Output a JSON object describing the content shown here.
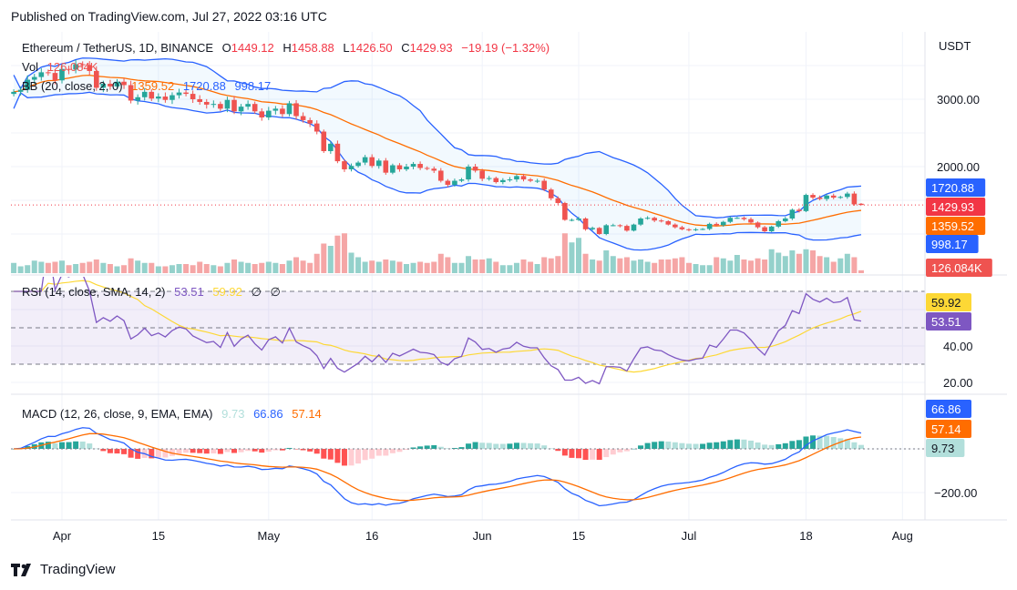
{
  "published": "Published on TradingView.com, Jul 27, 2022 03:16 UTC",
  "footer_brand": "TradingView",
  "header": {
    "symbol": "Ethereum / TetherUS, 1D, BINANCE",
    "o_label": "O",
    "o": "1449.12",
    "h_label": "H",
    "h": "1458.88",
    "l_label": "L",
    "l": "1426.50",
    "c_label": "C",
    "c": "1429.93",
    "change": "−19.19 (−1.32%)"
  },
  "vol_legend": {
    "label": "Vol",
    "value": "126.084K"
  },
  "bb_legend": {
    "label": "BB (20, close, 2, 0)",
    "basis": "1359.52",
    "upper": "1720.88",
    "lower": "998.17"
  },
  "rsi_legend": {
    "label": "RSI (14, close, SMA, 14, 2)",
    "rsi": "53.51",
    "ma": "59.92",
    "extra1": "∅",
    "extra2": "∅"
  },
  "macd_legend": {
    "label": "MACD (12, 26, close, 9, EMA, EMA)",
    "hist": "9.73",
    "macd": "66.86",
    "signal": "57.14"
  },
  "axis": {
    "currency": "USDT",
    "price_ticks": [
      "3000.00",
      "2000.00"
    ],
    "rsi_ticks": [
      "40.00",
      "20.00"
    ],
    "macd_ticks": [
      "−200.00"
    ],
    "x_ticks": [
      "Apr",
      "15",
      "May",
      "16",
      "Jun",
      "15",
      "Jul",
      "18",
      "Aug"
    ]
  },
  "badges": {
    "bb_upper": "1720.88",
    "close": "1429.93",
    "bb_basis": "1359.52",
    "bb_lower": "998.17",
    "volume": "126.084K",
    "rsi_ma": "59.92",
    "rsi": "53.51",
    "macd": "66.86",
    "signal": "57.14",
    "hist": "9.73"
  },
  "colors": {
    "up": "#26a69a",
    "down": "#ef5350",
    "vol_up": "#94d1cb",
    "vol_down": "#f5a6a6",
    "bb_band": "#2962ff",
    "bb_basis": "#ff6d00",
    "rsi": "#7e57c2",
    "rsi_ma": "#fdd835",
    "macd": "#2962ff",
    "signal": "#ff6d00",
    "hist_up_strong": "#26a69a",
    "hist_up_weak": "#b2dfdb",
    "hist_down_weak": "#ffcdd2",
    "hist_down_strong": "#ff5252",
    "close_badge": "#f23645",
    "volume_badge": "#ef5350"
  },
  "chart_data": {
    "type": "candlestick",
    "title": "Ethereum / TetherUS, 1D, BINANCE",
    "x_tick_labels": [
      "Apr",
      "15",
      "May",
      "16",
      "Jun",
      "15",
      "Jul",
      "18",
      "Aug"
    ],
    "y_unit": "USDT",
    "ylim": [
      620,
      3650
    ],
    "grid": true,
    "close": [
      3110,
      3140,
      3290,
      3330,
      3400,
      3390,
      3280,
      3450,
      3440,
      3520,
      3510,
      3420,
      3170,
      3230,
      3190,
      3260,
      3210,
      2980,
      3030,
      3110,
      3010,
      3040,
      2990,
      3060,
      3100,
      3080,
      3000,
      2960,
      2920,
      2930,
      2860,
      2990,
      2820,
      2890,
      2930,
      2820,
      2730,
      2830,
      2860,
      2780,
      2940,
      2750,
      2690,
      2640,
      2520,
      2230,
      2340,
      2080,
      1960,
      2010,
      2060,
      2140,
      2010,
      2090,
      1910,
      2020,
      1960,
      2000,
      2040,
      1980,
      1970,
      1940,
      1790,
      1730,
      1790,
      1810,
      2000,
      1940,
      1820,
      1830,
      1770,
      1800,
      1810,
      1860,
      1810,
      1790,
      1790,
      1660,
      1530,
      1460,
      1210,
      1210,
      1230,
      1070,
      1090,
      1000,
      1130,
      1130,
      1120,
      1050,
      1140,
      1230,
      1240,
      1200,
      1190,
      1140,
      1100,
      1070,
      1060,
      1070,
      1075,
      1150,
      1130,
      1180,
      1240,
      1240,
      1220,
      1170,
      1100,
      1040,
      1110,
      1190,
      1230,
      1360,
      1340,
      1580,
      1540,
      1520,
      1570,
      1540,
      1550,
      1600,
      1440,
      1430
    ],
    "last_ohlc": {
      "open": 1449.12,
      "high": 1458.88,
      "low": 1426.5,
      "close": 1429.93
    },
    "volume_k": [
      450,
      300,
      350,
      550,
      500,
      450,
      500,
      550,
      350,
      400,
      450,
      500,
      600,
      450,
      400,
      300,
      350,
      650,
      550,
      450,
      450,
      300,
      300,
      350,
      400,
      400,
      350,
      500,
      400,
      350,
      300,
      450,
      600,
      500,
      450,
      400,
      450,
      500,
      450,
      400,
      550,
      700,
      550,
      450,
      850,
      1300,
      1200,
      1650,
      1750,
      900,
      700,
      500,
      550,
      500,
      600,
      550,
      500,
      400,
      450,
      500,
      450,
      500,
      850,
      700,
      450,
      450,
      750,
      600,
      600,
      650,
      500,
      350,
      350,
      450,
      600,
      500,
      400,
      700,
      650,
      750,
      1750,
      1350,
      1550,
      850,
      600,
      550,
      1000,
      750,
      650,
      700,
      550,
      600,
      500,
      450,
      600,
      600,
      650,
      700,
      450,
      400,
      350,
      350,
      700,
      650,
      550,
      800,
      600,
      550,
      650,
      600,
      1050,
      900,
      750,
      1000,
      850,
      1050,
      1000,
      750,
      700,
      500,
      650,
      850,
      700,
      126.084
    ],
    "indicators": {
      "bb": {
        "length": 20,
        "mult": 2,
        "basis": 1359.52,
        "upper": 1720.88,
        "lower": 998.17
      },
      "rsi": {
        "length": 14,
        "ma_length": 14,
        "value": 53.51,
        "ma": 59.92,
        "bands": [
          70,
          50,
          30
        ],
        "ylim": [
          13,
          76
        ]
      },
      "macd": {
        "fast": 12,
        "slow": 26,
        "signal": 9,
        "hist": 9.73,
        "macd": 66.86,
        "signal_value": 57.14,
        "ylim": [
          -320,
          240
        ]
      }
    }
  }
}
